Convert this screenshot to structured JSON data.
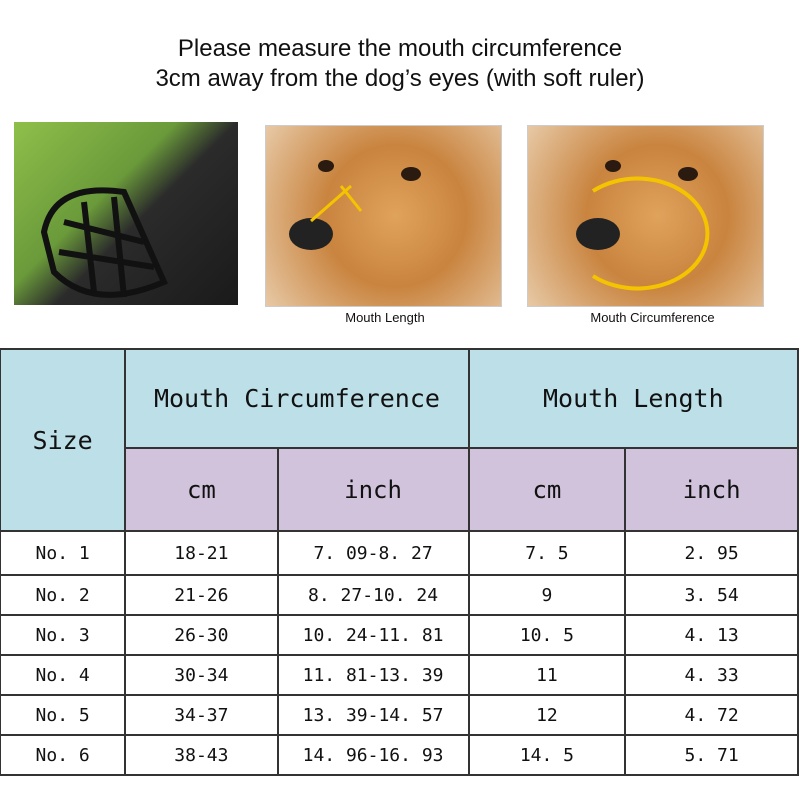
{
  "title": {
    "line1": "Please measure the mouth circumference",
    "line2": "3cm away from the dog’s eyes (with soft ruler)"
  },
  "images": [
    {
      "caption": ""
    },
    {
      "caption": "Mouth Length"
    },
    {
      "caption": "Mouth Circumference"
    }
  ],
  "table": {
    "size_header": "Size",
    "group_headers": [
      "Mouth Circumference",
      "Mouth Length"
    ],
    "unit_headers": [
      "cm",
      "inch",
      "cm",
      "inch"
    ],
    "rows": [
      [
        "No. 1",
        "18-21",
        "7. 09-8. 27",
        "7. 5",
        "2. 95"
      ],
      [
        "No. 2",
        "21-26",
        "8. 27-10. 24",
        "9",
        "3. 54"
      ],
      [
        "No. 3",
        "26-30",
        "10. 24-11. 81",
        "10. 5",
        "4. 13"
      ],
      [
        "No. 4",
        "30-34",
        "11. 81-13. 39",
        "11",
        "4. 33"
      ],
      [
        "No. 5",
        "34-37",
        "13. 39-14. 57",
        "12",
        "4. 72"
      ],
      [
        "No. 6",
        "38-43",
        "14. 96-16. 93",
        "14. 5",
        "5. 71"
      ]
    ]
  },
  "colors": {
    "header_cyan": "#bde0e8",
    "header_lavender": "#d1c3dc",
    "arrow_yellow": "#f5c400"
  }
}
